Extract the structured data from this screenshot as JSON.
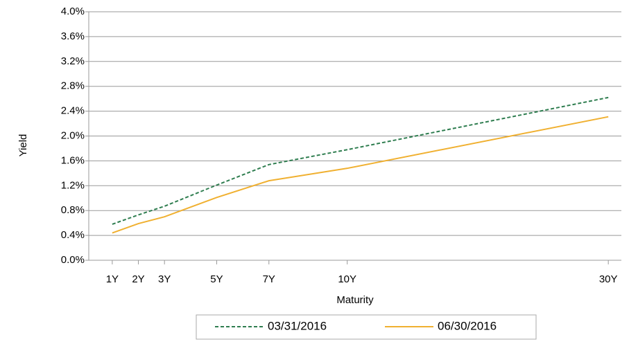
{
  "chart_data": {
    "type": "line",
    "y_label": "Yield",
    "x_label": "Maturity",
    "x": [
      0,
      1,
      2,
      4,
      6,
      9,
      19
    ],
    "xlim": [
      -0.9,
      19.5
    ],
    "xticks": [
      {
        "value": 0,
        "label": "1Y"
      },
      {
        "value": 1,
        "label": "2Y"
      },
      {
        "value": 2,
        "label": "3Y"
      },
      {
        "value": 4,
        "label": "5Y"
      },
      {
        "value": 6,
        "label": "7Y"
      },
      {
        "value": 9,
        "label": "10Y"
      },
      {
        "value": 19,
        "label": "30Y"
      }
    ],
    "ylim": [
      0,
      4
    ],
    "yticks": [
      {
        "value": 0,
        "label": "0.0%"
      },
      {
        "value": 0.4,
        "label": "0.4%"
      },
      {
        "value": 0.8,
        "label": "0.8%"
      },
      {
        "value": 1.2,
        "label": "1.2%"
      },
      {
        "value": 1.6,
        "label": "1.6%"
      },
      {
        "value": 2,
        "label": "2.0%"
      },
      {
        "value": 2.4,
        "label": "2.4%"
      },
      {
        "value": 2.8,
        "label": "2.8%"
      },
      {
        "value": 3.2,
        "label": "3.2%"
      },
      {
        "value": 3.6,
        "label": "3.6%"
      },
      {
        "value": 4,
        "label": "4.0%"
      }
    ],
    "grid": true,
    "legend": "bottom",
    "series": [
      {
        "name": "03/31/2016",
        "color": "#2e7d4f",
        "dashed": true,
        "values": [
          0.58,
          0.73,
          0.87,
          1.21,
          1.54,
          1.78,
          2.62
        ]
      },
      {
        "name": "06/30/2016",
        "color": "#f0b030",
        "dashed": false,
        "values": [
          0.44,
          0.59,
          0.7,
          1.01,
          1.28,
          1.48,
          2.31
        ]
      }
    ]
  }
}
